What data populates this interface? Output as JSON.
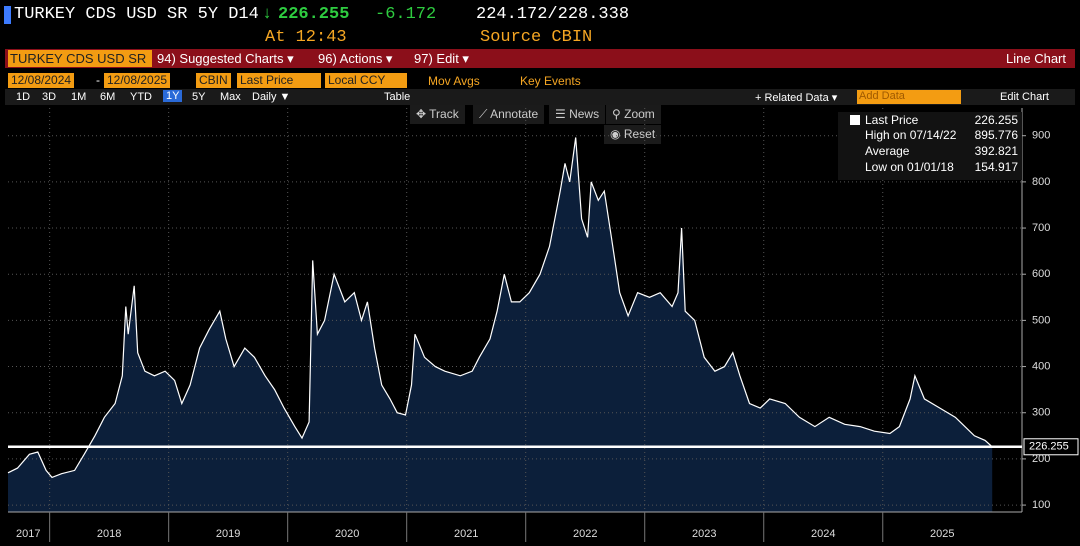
{
  "header": {
    "ticker": "TURKEY CDS USD SR 5Y D14",
    "arrow": "↓",
    "price": "226.255",
    "change": "-6.172",
    "bid_ask": "224.172/228.338",
    "time": "At 12:43",
    "source": "Source CBIN"
  },
  "menu": {
    "security": "TURKEY CDS USD SR",
    "items": [
      "94) Suggested Charts ▾",
      "96) Actions ▾",
      "97) Edit ▾"
    ],
    "chart_kind": "Line Chart"
  },
  "fields": {
    "start": "12/08/2024",
    "dash": "-",
    "end": "12/08/2025",
    "source": "CBIN",
    "field": "Last Price",
    "currency": "Local CCY",
    "mov_avgs": "Mov Avgs",
    "key_events": "Key Events"
  },
  "periods": {
    "items": [
      "1D",
      "3D",
      "1M",
      "6M",
      "YTD",
      "1Y",
      "5Y",
      "Max"
    ],
    "frequency": "Daily ▼",
    "table": "Table",
    "related": "+ Related Data ▾",
    "add": "Add Data",
    "edit": "Edit Chart"
  },
  "tools": {
    "items": [
      "Track",
      "Annotate",
      "News",
      "Zoom"
    ],
    "reset": "Reset"
  },
  "legend": {
    "title": "Last Price",
    "items": [
      {
        "label": "High on 07/14/22",
        "value": "895.776"
      },
      {
        "label": "Average",
        "value": "392.821"
      },
      {
        "label": "Low on 01/01/18",
        "value": "154.917"
      }
    ]
  },
  "chart_data": {
    "type": "line",
    "last_price": 226.255,
    "series": [
      {
        "name": "TURKEY CDS USD SR 5Y D14",
        "color": "#ffffff",
        "fill": "#0c1f3a",
        "x": [
          2017.65,
          2017.73,
          2017.83,
          2017.9,
          2017.97,
          2018.02,
          2018.1,
          2018.21,
          2018.29,
          2018.38,
          2018.46,
          2018.55,
          2018.61,
          2018.64,
          2018.66,
          2018.71,
          2018.74,
          2018.8,
          2018.88,
          2018.97,
          2019.05,
          2019.11,
          2019.18,
          2019.26,
          2019.34,
          2019.43,
          2019.48,
          2019.55,
          2019.64,
          2019.72,
          2019.81,
          2019.89,
          2019.97,
          2020.06,
          2020.12,
          2020.18,
          2020.21,
          2020.25,
          2020.31,
          2020.39,
          2020.48,
          2020.56,
          2020.62,
          2020.67,
          2020.73,
          2020.79,
          2020.86,
          2020.92,
          2020.99,
          2021.04,
          2021.07,
          2021.15,
          2021.24,
          2021.32,
          2021.45,
          2021.55,
          2021.61,
          2021.7,
          2021.76,
          2021.82,
          2021.88,
          2021.95,
          2022.03,
          2022.12,
          2022.2,
          2022.29,
          2022.33,
          2022.37,
          2022.42,
          2022.47,
          2022.52,
          2022.55,
          2022.61,
          2022.66,
          2022.72,
          2022.79,
          2022.86,
          2022.94,
          2023.04,
          2023.13,
          2023.23,
          2023.28,
          2023.31,
          2023.34,
          2023.42,
          2023.5,
          2023.59,
          2023.67,
          2023.74,
          2023.8,
          2023.88,
          2023.97,
          2024.05,
          2024.18,
          2024.3,
          2024.43,
          2024.55,
          2024.68,
          2024.81,
          2024.93,
          2025.06,
          2025.14,
          2025.23,
          2025.27,
          2025.35,
          2025.48,
          2025.61,
          2025.69,
          2025.77,
          2025.86,
          2025.92
        ],
        "values": [
          170,
          180,
          210,
          215,
          175,
          160,
          168,
          175,
          210,
          250,
          290,
          320,
          380,
          530,
          470,
          575,
          430,
          390,
          380,
          390,
          370,
          320,
          360,
          440,
          480,
          520,
          460,
          400,
          440,
          420,
          380,
          350,
          310,
          270,
          245,
          280,
          630,
          470,
          500,
          600,
          540,
          560,
          500,
          540,
          440,
          360,
          330,
          300,
          295,
          360,
          470,
          420,
          400,
          390,
          380,
          390,
          420,
          460,
          520,
          600,
          540,
          540,
          560,
          600,
          660,
          780,
          840,
          800,
          896,
          720,
          680,
          800,
          760,
          780,
          680,
          560,
          510,
          560,
          550,
          560,
          530,
          560,
          700,
          520,
          500,
          420,
          390,
          400,
          430,
          380,
          320,
          310,
          330,
          320,
          290,
          270,
          290,
          275,
          270,
          260,
          255,
          270,
          330,
          380,
          330,
          310,
          290,
          270,
          250,
          240,
          226.255
        ]
      }
    ],
    "xlim": [
      2017.65,
      2026.17
    ],
    "xgrid": [
      2018,
      2019,
      2020,
      2021,
      2022,
      2023,
      2024,
      2025
    ],
    "xticks": [
      {
        "value": 2017.82,
        "label": "2017"
      },
      {
        "value": 2018.5,
        "label": "2018"
      },
      {
        "value": 2019.5,
        "label": "2019"
      },
      {
        "value": 2020.5,
        "label": "2020"
      },
      {
        "value": 2021.5,
        "label": "2021"
      },
      {
        "value": 2022.5,
        "label": "2022"
      },
      {
        "value": 2023.5,
        "label": "2023"
      },
      {
        "value": 2024.5,
        "label": "2024"
      },
      {
        "value": 2025.5,
        "label": "2025"
      }
    ],
    "ylim": [
      85,
      960
    ],
    "yticks": [
      100,
      200,
      300,
      400,
      500,
      600,
      700,
      800,
      900
    ],
    "grid": true
  }
}
